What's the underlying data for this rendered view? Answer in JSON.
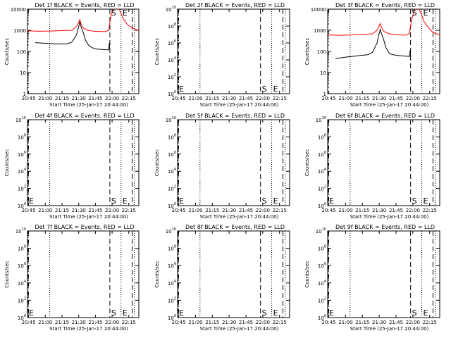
{
  "time_axis": {
    "tick_labels": [
      "20:45",
      "21:00",
      "21:15",
      "21:30",
      "21:45",
      "22:00",
      "22:15"
    ],
    "tick_minutes": [
      1,
      16,
      31,
      46,
      61,
      76,
      91
    ],
    "range_minutes": [
      0,
      100
    ],
    "xlabel": "Start Time (25-Jan-17 20:44:00)",
    "dotted_lines_minutes": [
      20,
      84,
      96
    ],
    "dashed_lines_minutes": [
      74,
      94
    ],
    "markers": [
      {
        "label": "S",
        "minute": 74
      },
      {
        "label": "E",
        "minute": 84
      }
    ]
  },
  "ylabel": "Counts/sec",
  "colors": {
    "events": "#000000",
    "lld": "#ff0000",
    "axes": "#000000"
  },
  "chart_data": [
    {
      "type": "line",
      "title": "Det 1f BLACK = Events, RED = LLD",
      "ylabel": "Counts/sec",
      "xlabel": "Start Time (25-Jan-17 20:44:00)",
      "yscale": "log",
      "ylim": [
        1,
        10000
      ],
      "ytick_labels": [
        "1",
        "10",
        "100",
        "1000",
        "10000"
      ],
      "ytick_values": [
        1,
        10,
        100,
        1000,
        10000
      ],
      "start_label": {
        "text": "S",
        "x": 74,
        "y": 10000
      },
      "end_label": {
        "text": "E",
        "x": 84,
        "y": 10000
      },
      "series": [
        {
          "name": "Events",
          "color": "#000000",
          "x": [
            7,
            12,
            18,
            24,
            30,
            36,
            40,
            44,
            46,
            47,
            48,
            50,
            52,
            55,
            58,
            62,
            66,
            70,
            73,
            73.5,
            74
          ],
          "y": [
            260,
            250,
            240,
            230,
            225,
            230,
            280,
            600,
            1500,
            2600,
            1500,
            800,
            350,
            190,
            150,
            130,
            125,
            120,
            118,
            250,
            120
          ]
        },
        {
          "name": "LLD",
          "color": "#ff0000",
          "x": [
            0,
            10,
            20,
            30,
            40,
            44,
            46,
            47,
            48,
            50,
            54,
            60,
            66,
            70,
            73,
            75,
            78,
            80,
            82,
            84,
            86,
            90,
            94,
            98,
            100
          ],
          "y": [
            950,
            900,
            920,
            960,
            1000,
            1500,
            2400,
            3200,
            2100,
            1300,
            1000,
            900,
            880,
            880,
            1000,
            5000,
            13000,
            14000,
            11000,
            6500,
            3500,
            1800,
            1300,
            1050,
            1000
          ]
        }
      ]
    },
    {
      "type": "line",
      "title": "Det 2f BLACK = Events, RED = LLD",
      "ylabel": "Counts/sec",
      "xlabel": "Start Time (25-Jan-17 20:44:00)",
      "yscale": "log",
      "ylim": [
        1,
        10000000000
      ],
      "ytick_labels": [
        "10^0",
        "10^2",
        "10^4",
        "10^6",
        "10^8",
        "10^10"
      ],
      "ytick_values": [
        1,
        100,
        10000,
        1000000,
        100000000,
        10000000000
      ],
      "start_label": {
        "text": "S",
        "x": 74,
        "y": 1
      },
      "end_label": {
        "text": "E",
        "x": 84,
        "y": 1
      },
      "series": []
    },
    {
      "type": "line",
      "title": "Det 3f BLACK = Events, RED = LLD",
      "ylabel": "Counts/sec",
      "xlabel": "Start Time (25-Jan-17 20:44:00)",
      "yscale": "log",
      "ylim": [
        1,
        10000
      ],
      "ytick_labels": [
        "1",
        "10",
        "100",
        "1000",
        "10000"
      ],
      "ytick_values": [
        1,
        10,
        100,
        1000,
        10000
      ],
      "start_label": {
        "text": "S",
        "x": 74,
        "y": 10000
      },
      "end_label": {
        "text": "E",
        "x": 84,
        "y": 10000
      },
      "series": [
        {
          "name": "Events",
          "color": "#000000",
          "x": [
            7,
            12,
            18,
            24,
            30,
            36,
            40,
            44,
            46,
            47,
            48,
            50,
            52,
            55,
            58,
            62,
            66,
            70,
            73,
            73.5,
            74
          ],
          "y": [
            45,
            50,
            55,
            60,
            65,
            70,
            90,
            250,
            700,
            1100,
            700,
            350,
            150,
            80,
            70,
            65,
            62,
            60,
            58,
            110,
            60
          ]
        },
        {
          "name": "LLD",
          "color": "#ff0000",
          "x": [
            0,
            10,
            20,
            30,
            40,
            44,
            46,
            47,
            48,
            50,
            54,
            60,
            66,
            70,
            73,
            75,
            78,
            80,
            82,
            84,
            86,
            90,
            94,
            98,
            100
          ],
          "y": [
            600,
            580,
            600,
            630,
            680,
            1000,
            1600,
            2100,
            1400,
            900,
            700,
            620,
            600,
            600,
            700,
            3500,
            10000,
            11500,
            9000,
            5000,
            2600,
            1300,
            800,
            650,
            600
          ]
        }
      ]
    },
    {
      "type": "line",
      "title": "Det 4f BLACK = Events, RED = LLD",
      "ylabel": "Counts/sec",
      "xlabel": "Start Time (25-Jan-17 20:44:00)",
      "yscale": "log",
      "ylim": [
        1,
        10000000000
      ],
      "ytick_labels": [
        "10^0",
        "10^2",
        "10^4",
        "10^6",
        "10^8",
        "10^10"
      ],
      "ytick_values": [
        1,
        100,
        10000,
        1000000,
        100000000,
        10000000000
      ],
      "start_label": {
        "text": "S",
        "x": 74,
        "y": 1
      },
      "end_label": {
        "text": "E",
        "x": 84,
        "y": 1
      },
      "series": []
    },
    {
      "type": "line",
      "title": "Det 5f BLACK = Events, RED = LLD",
      "ylabel": "Counts/sec",
      "xlabel": "Start Time (25-Jan-17 20:44:00)",
      "yscale": "log",
      "ylim": [
        1,
        10000000000
      ],
      "ytick_labels": [
        "10^0",
        "10^2",
        "10^4",
        "10^6",
        "10^8",
        "10^10"
      ],
      "ytick_values": [
        1,
        100,
        10000,
        1000000,
        100000000,
        10000000000
      ],
      "start_label": {
        "text": "S",
        "x": 74,
        "y": 1
      },
      "end_label": {
        "text": "E",
        "x": 84,
        "y": 1
      },
      "series": []
    },
    {
      "type": "line",
      "title": "Det 6f BLACK = Events, RED = LLD",
      "ylabel": "Counts/sec",
      "xlabel": "Start Time (25-Jan-17 20:44:00)",
      "yscale": "log",
      "ylim": [
        1,
        10000000000
      ],
      "ytick_labels": [
        "10^0",
        "10^2",
        "10^4",
        "10^6",
        "10^8",
        "10^10"
      ],
      "ytick_values": [
        1,
        100,
        10000,
        1000000,
        100000000,
        10000000000
      ],
      "start_label": {
        "text": "S",
        "x": 74,
        "y": 1
      },
      "end_label": {
        "text": "E",
        "x": 84,
        "y": 1
      },
      "series": []
    },
    {
      "type": "line",
      "title": "Det 7f BLACK = Events, RED = LLD",
      "ylabel": "Counts/sec",
      "xlabel": "Start Time (25-Jan-17 20:44:00)",
      "yscale": "log",
      "ylim": [
        1,
        10000000000
      ],
      "ytick_labels": [
        "10^0",
        "10^2",
        "10^4",
        "10^6",
        "10^8",
        "10^10"
      ],
      "ytick_values": [
        1,
        100,
        10000,
        1000000,
        100000000,
        10000000000
      ],
      "start_label": {
        "text": "S",
        "x": 74,
        "y": 1
      },
      "end_label": {
        "text": "E",
        "x": 84,
        "y": 1
      },
      "series": []
    },
    {
      "type": "line",
      "title": "Det 8f BLACK = Events, RED = LLD",
      "ylabel": "Counts/sec",
      "xlabel": "Start Time (25-Jan-17 20:44:00)",
      "yscale": "log",
      "ylim": [
        1,
        10000000000
      ],
      "ytick_labels": [
        "10^0",
        "10^2",
        "10^4",
        "10^6",
        "10^8",
        "10^10"
      ],
      "ytick_values": [
        1,
        100,
        10000,
        1000000,
        100000000,
        10000000000
      ],
      "start_label": {
        "text": "S",
        "x": 74,
        "y": 1
      },
      "end_label": {
        "text": "E",
        "x": 84,
        "y": 1
      },
      "series": []
    },
    {
      "type": "line",
      "title": "Det 9f BLACK = Events, RED = LLD",
      "ylabel": "Counts/sec",
      "xlabel": "Start Time (25-Jan-17 20:44:00)",
      "yscale": "log",
      "ylim": [
        1,
        10000000000
      ],
      "ytick_labels": [
        "10^0",
        "10^2",
        "10^4",
        "10^6",
        "10^8",
        "10^10"
      ],
      "ytick_values": [
        1,
        100,
        10000,
        1000000,
        100000000,
        10000000000
      ],
      "start_label": {
        "text": "S",
        "x": 74,
        "y": 1
      },
      "end_label": {
        "text": "E",
        "x": 84,
        "y": 1
      },
      "series": []
    }
  ]
}
